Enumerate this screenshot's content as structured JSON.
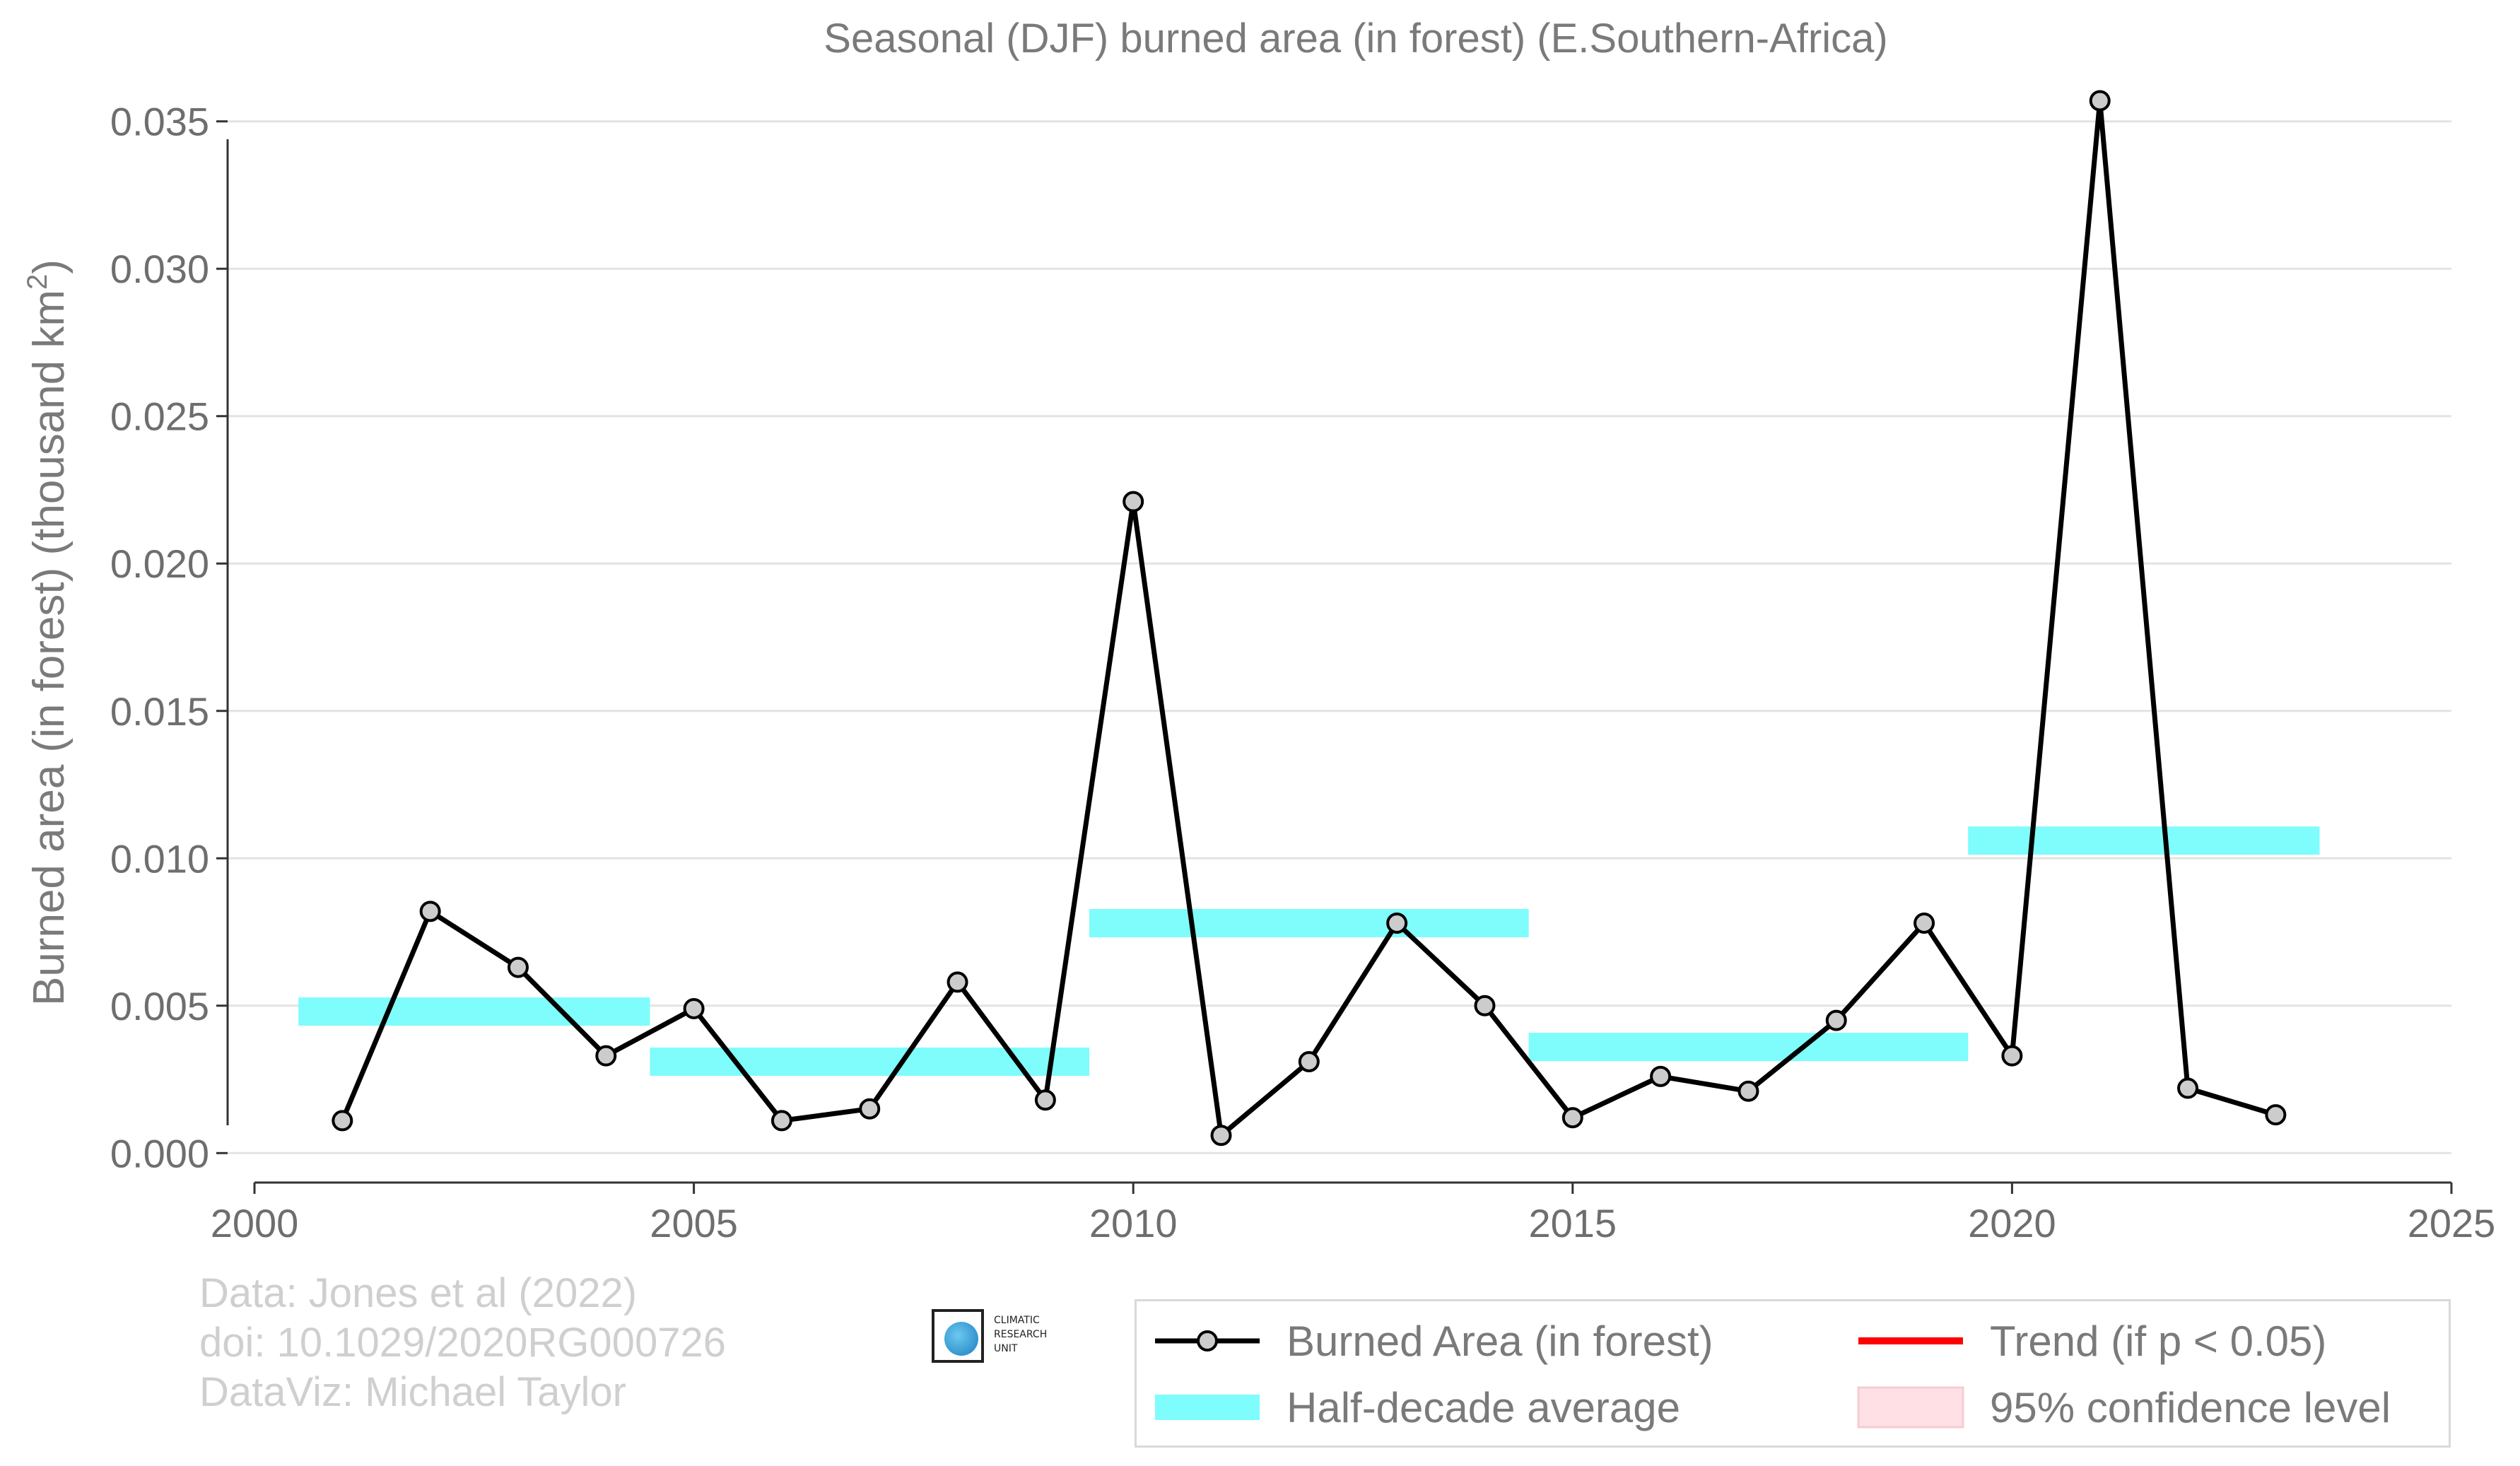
{
  "chart_data": {
    "type": "line",
    "title": "Seasonal (DJF) burned area (in forest) (E.Southern-Africa)",
    "ylabel": "Burned area (in forest) (thousand km",
    "ylabel_sup": "2",
    "ylabel_end": ")",
    "xlim": [
      2000,
      2025
    ],
    "ylim": [
      -0.001,
      0.036
    ],
    "xticks": [
      2000,
      2005,
      2010,
      2015,
      2020,
      2025
    ],
    "yticks": [
      0.0,
      0.005,
      0.01,
      0.015,
      0.02,
      0.025,
      0.03,
      0.035
    ],
    "ytick_labels": [
      "0.000",
      "0.005",
      "0.010",
      "0.015",
      "0.020",
      "0.025",
      "0.030",
      "0.035"
    ],
    "grid": "horizontal",
    "series": [
      {
        "name": "Burned Area (in forest)",
        "kind": "line-marker",
        "color": "#000000",
        "marker_fill": "#cccccc",
        "x": [
          2001,
          2002,
          2003,
          2004,
          2005,
          2006,
          2007,
          2008,
          2009,
          2010,
          2011,
          2012,
          2013,
          2014,
          2015,
          2016,
          2017,
          2018,
          2019,
          2020,
          2021,
          2022,
          2023
        ],
        "y": [
          0.0011,
          0.0082,
          0.0063,
          0.0033,
          0.0049,
          0.0011,
          0.0015,
          0.0058,
          0.0018,
          0.0221,
          0.0006,
          0.0031,
          0.0078,
          0.005,
          0.0012,
          0.0026,
          0.0021,
          0.0045,
          0.0078,
          0.0033,
          0.0357,
          0.0022,
          0.0013
        ]
      },
      {
        "name": "Half-decade average",
        "kind": "band",
        "color": "#7ffcfc",
        "segments": [
          {
            "x0": 2000.5,
            "x1": 2004.5,
            "y": 0.0048
          },
          {
            "x0": 2004.5,
            "x1": 2009.5,
            "y": 0.0031
          },
          {
            "x0": 2009.5,
            "x1": 2014.5,
            "y": 0.0078
          },
          {
            "x0": 2014.5,
            "x1": 2019.5,
            "y": 0.0036
          },
          {
            "x0": 2019.5,
            "x1": 2023.5,
            "y": 0.0106
          }
        ]
      },
      {
        "name": "Trend (if p < 0.05)",
        "kind": "legend-only",
        "color": "#ff0000"
      },
      {
        "name": "95% confidence level",
        "kind": "legend-only",
        "color": "#ffe0e4"
      }
    ],
    "legend": "bottom-right"
  },
  "credits": {
    "line1": "Data: Jones et al (2022)",
    "line2": "doi: 10.1029/2020RG000726",
    "line3": "DataViz: Michael Taylor"
  },
  "logo": {
    "icon": "climatic-research-unit-logo",
    "line1": "CLIMATIC",
    "line2": "RESEARCH",
    "line3": "UNIT"
  }
}
